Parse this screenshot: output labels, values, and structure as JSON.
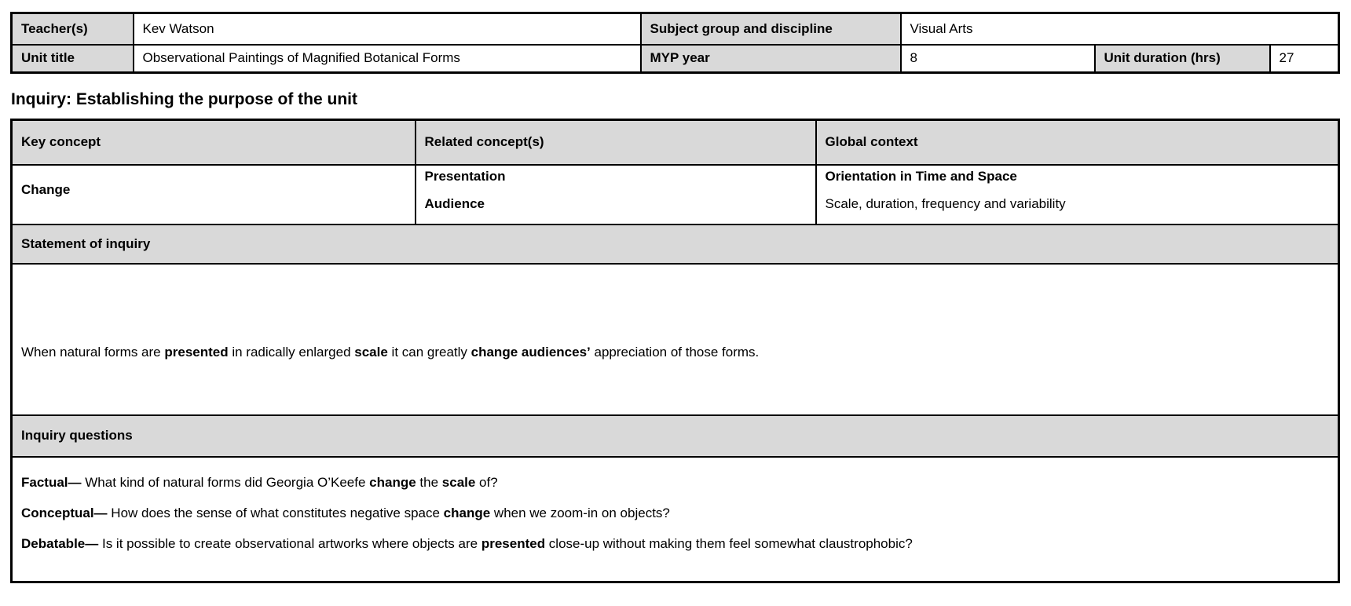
{
  "colors": {
    "shading": "#d9d9d9",
    "border": "#000000",
    "text": "#000000",
    "page_background": "#ffffff"
  },
  "info_table": {
    "teacher_label": "Teacher(s)",
    "teacher_value": "Kev Watson",
    "subject_label": "Subject group and discipline",
    "subject_value": "Visual Arts",
    "unit_title_label": "Unit title",
    "unit_title_value": "Observational Paintings of Magnified Botanical Forms",
    "myp_year_label": "MYP year",
    "myp_year_value": "8",
    "duration_label": "Unit duration (hrs)",
    "duration_value": "27"
  },
  "section_heading": "Inquiry: Establishing the purpose of the unit",
  "inquiry_table": {
    "key_concept_header": "Key concept",
    "related_concepts_header": "Related concept(s)",
    "global_context_header": "Global context",
    "key_concept": "Change",
    "related_concepts": [
      "Presentation",
      "Audience"
    ],
    "global_context_title": "Orientation in Time and Space",
    "global_context_exploration": "Scale, duration, frequency and variability",
    "statement_header": "Statement of inquiry",
    "statement": [
      {
        "t": "When natural forms are "
      },
      {
        "t": "presented",
        "b": true
      },
      {
        "t": " in radically enlarged "
      },
      {
        "t": "scale",
        "b": true
      },
      {
        "t": " it can greatly "
      },
      {
        "t": "change audiences’",
        "b": true
      },
      {
        "t": " appreciation of those forms."
      }
    ],
    "questions_header": "Inquiry questions",
    "questions": [
      [
        {
          "t": "Factual—",
          "b": true
        },
        {
          "t": " What kind of natural forms did Georgia O’Keefe "
        },
        {
          "t": "change",
          "b": true
        },
        {
          "t": " the "
        },
        {
          "t": "scale",
          "b": true
        },
        {
          "t": " of?"
        }
      ],
      [
        {
          "t": "Conceptual—",
          "b": true
        },
        {
          "t": " How does the sense of what constitutes negative space "
        },
        {
          "t": "change",
          "b": true
        },
        {
          "t": " when we zoom-in on objects?"
        }
      ],
      [
        {
          "t": "Debatable—",
          "b": true
        },
        {
          "t": " Is it possible to create observational artworks where objects are "
        },
        {
          "t": "presented",
          "b": true
        },
        {
          "t": " close-up without making them feel somewhat claustrophobic?"
        }
      ]
    ]
  }
}
